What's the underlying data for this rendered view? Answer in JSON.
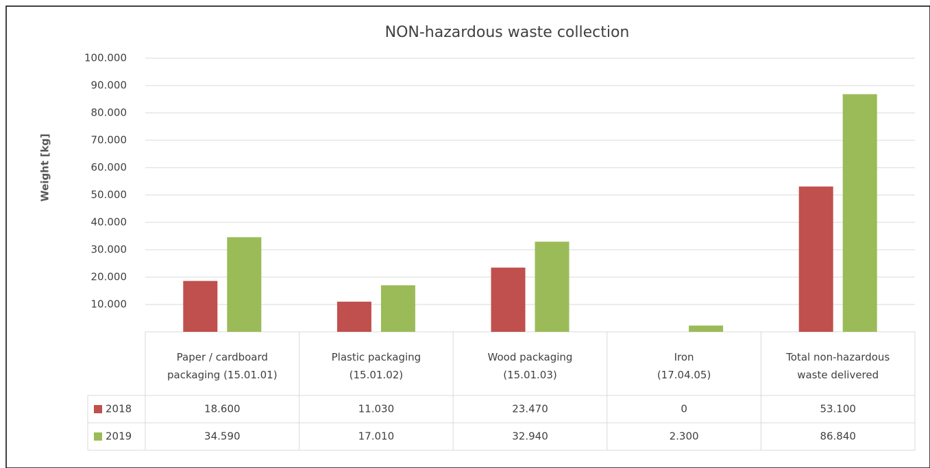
{
  "chart_data": {
    "type": "bar",
    "title": "NON-hazardous waste collection",
    "y_label": "Weight [kg]",
    "categories": [
      "Paper / cardboard\npackaging (15.01.01)",
      "Plastic packaging\n(15.01.02)",
      "Wood packaging\n(15.01.03)",
      "Iron\n(17.04.05)",
      "Total non-hazardous\nwaste delivered"
    ],
    "series": [
      {
        "name": "2018",
        "color": "#c0504d",
        "values": [
          18600,
          11030,
          23470,
          0,
          53100
        ],
        "value_labels": [
          "18.600",
          "11.030",
          "23.470",
          "0",
          "53.100"
        ]
      },
      {
        "name": "2019",
        "color": "#9bbb59",
        "values": [
          34590,
          17010,
          32940,
          2300,
          86840
        ],
        "value_labels": [
          "34.590",
          "17.010",
          "32.940",
          "2.300",
          "86.840"
        ]
      }
    ],
    "ylim": [
      0,
      100000
    ],
    "yticks": [
      {
        "value": 10000,
        "label": "10.000"
      },
      {
        "value": 20000,
        "label": "20.000"
      },
      {
        "value": 30000,
        "label": "30.000"
      },
      {
        "value": 40000,
        "label": "40.000"
      },
      {
        "value": 50000,
        "label": "50.000"
      },
      {
        "value": 60000,
        "label": "60.000"
      },
      {
        "value": 70000,
        "label": "70.000"
      },
      {
        "value": 80000,
        "label": "80.000"
      },
      {
        "value": 90000,
        "label": "90.000"
      },
      {
        "value": 100000,
        "label": "100.000"
      }
    ],
    "grid": true
  }
}
